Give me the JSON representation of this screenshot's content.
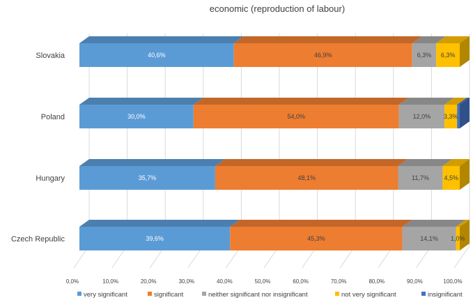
{
  "chart_data": {
    "type": "bar",
    "orientation": "horizontal",
    "stacked": true,
    "style_3d": true,
    "title": "economic (reproduction of labour)",
    "categories": [
      "Slovakia",
      "Poland",
      "Hungary",
      "Czech Republic"
    ],
    "series": [
      {
        "name": "very significant",
        "color": "#5b9bd5",
        "values": [
          40.6,
          30.0,
          35.7,
          39.6
        ],
        "labels": [
          "40,6%",
          "30,0%",
          "35,7%",
          "39,6%"
        ]
      },
      {
        "name": "significant",
        "color": "#ed7d31",
        "values": [
          46.9,
          54.0,
          48.1,
          45.3
        ],
        "labels": [
          "46,9%",
          "54,0%",
          "48,1%",
          "45,3%"
        ]
      },
      {
        "name": "neither significant nor insignificant",
        "color": "#a5a5a5",
        "values": [
          6.3,
          12.0,
          11.7,
          14.1
        ],
        "labels": [
          "6,3%",
          "12,0%",
          "11,7%",
          "14,1%"
        ]
      },
      {
        "name": "not very significant",
        "color": "#ffc000",
        "values": [
          6.3,
          3.3,
          4.5,
          1.0
        ],
        "labels": [
          "6,3%",
          "3,3%",
          "4,5%",
          "1,0%"
        ]
      },
      {
        "name": "insignificant",
        "color": "#4472c4",
        "values": [
          0.0,
          0.7,
          0.0,
          0.0
        ],
        "labels": [
          "",
          "",
          "",
          ""
        ]
      }
    ],
    "xlim": [
      0,
      100
    ],
    "xticks": [
      "0,0%",
      "10,0%",
      "20,0%",
      "30,0%",
      "40,0%",
      "50,0%",
      "60,0%",
      "70,0%",
      "80,0%",
      "90,0%",
      "100,0%"
    ],
    "grid": true,
    "legend_position": "bottom"
  }
}
